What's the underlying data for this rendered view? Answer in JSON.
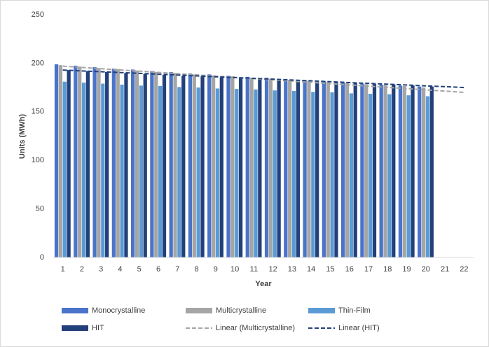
{
  "chart_data": {
    "type": "bar",
    "x_label": "Year",
    "y_label": "Units (MWh)",
    "categories": [
      "1",
      "2",
      "3",
      "4",
      "5",
      "6",
      "7",
      "8",
      "9",
      "10",
      "11",
      "12",
      "13",
      "14",
      "15",
      "16",
      "17",
      "18",
      "19",
      "20",
      "21",
      "22"
    ],
    "ylim": [
      0,
      250
    ],
    "yticks": [
      0,
      50,
      100,
      150,
      200,
      250
    ],
    "grid": false,
    "series": [
      {
        "name": "Monocrystalline",
        "type": "bar",
        "color": "#4a74c9",
        "values": [
          199,
          197.5,
          196,
          194.5,
          193.5,
          192,
          191,
          189.5,
          188.5,
          187,
          186,
          185,
          183.5,
          182.5,
          181.5,
          180.5,
          179,
          178,
          177,
          176,
          null,
          null
        ]
      },
      {
        "name": "Multicrystalline",
        "type": "bar",
        "color": "#a5a5a5",
        "values": [
          198,
          196.5,
          195,
          194,
          192.5,
          191,
          190,
          188.5,
          187.5,
          186.5,
          185,
          184,
          183,
          182,
          180.5,
          179.5,
          178.5,
          177.5,
          176.5,
          175,
          null,
          null
        ]
      },
      {
        "name": "Thin-Film",
        "type": "bar",
        "color": "#5b9bd5",
        "values": [
          181,
          180,
          179,
          178,
          177,
          176.5,
          175.5,
          175,
          174,
          173.5,
          173,
          172,
          171.5,
          170.5,
          170,
          169,
          168.5,
          168,
          167,
          166,
          null,
          null
        ]
      },
      {
        "name": "HIT",
        "type": "bar",
        "color": "#22407a",
        "values": [
          193,
          192,
          191,
          190,
          189,
          188,
          187,
          186.5,
          185.5,
          184.5,
          184,
          183,
          182,
          181,
          180.5,
          179.5,
          178.5,
          178,
          177,
          176,
          null,
          null
        ]
      },
      {
        "name": "Linear (Multicrystalline)",
        "type": "line",
        "color": "#a5a5a5",
        "values": [
          197,
          195.7,
          194.4,
          193.1,
          191.9,
          190.6,
          189.3,
          188,
          186.7,
          185.4,
          184.1,
          182.9,
          181.6,
          180.3,
          179,
          177.7,
          176.4,
          175.1,
          173.9,
          172.6,
          171.3,
          170
        ]
      },
      {
        "name": "Linear (HIT)",
        "type": "line",
        "color": "#22407a",
        "values": [
          193,
          192.1,
          191.3,
          190.4,
          189.6,
          188.7,
          187.9,
          187,
          186.1,
          185.3,
          184.4,
          183.6,
          182.7,
          181.9,
          181,
          180.1,
          179.3,
          178.4,
          177.6,
          176.7,
          175.9,
          175
        ]
      }
    ]
  }
}
